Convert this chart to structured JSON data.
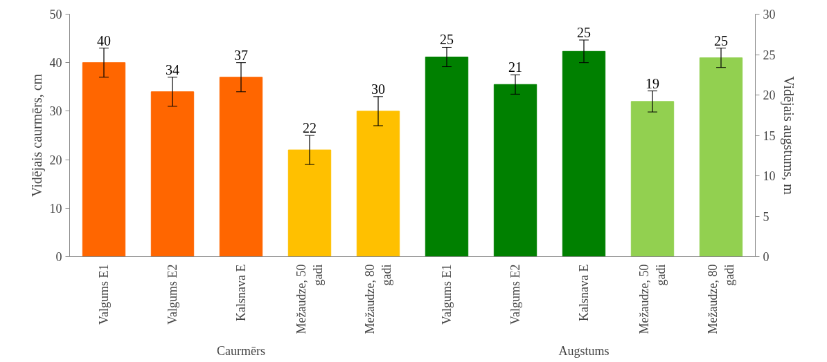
{
  "chart_data": {
    "type": "bar",
    "ylabel": "Vidējais caurmērs, cm",
    "y2label": "Vidējais augstums, m",
    "categories": [
      "Valgums E1",
      "Valgums E2",
      "Kalsnava E",
      "Mežaudze, 50 gadi",
      "Mežaudze, 80 gadi",
      "Valgums E1",
      "Valgums E2",
      "Kalsnava E",
      "Mežaudze, 50 gadi",
      "Mežaudze, 80 gadi"
    ],
    "series": [
      {
        "axis": "y",
        "colors": [
          "#ff6600",
          "#ff6600",
          "#ff6600",
          "#ffc000",
          "#ffc000",
          null,
          null,
          null,
          null,
          null
        ],
        "values": [
          40,
          34,
          37,
          22,
          30,
          null,
          null,
          null,
          null,
          null
        ],
        "errors": [
          3,
          3,
          3,
          3,
          3,
          null,
          null,
          null,
          null,
          null
        ],
        "value_labels": [
          "40",
          "34",
          "37",
          "22",
          "30",
          null,
          null,
          null,
          null,
          null
        ]
      },
      {
        "axis": "y2",
        "colors": [
          null,
          null,
          null,
          null,
          null,
          "#008000",
          "#008000",
          "#008000",
          "#92d050",
          "#92d050"
        ],
        "values": [
          null,
          null,
          null,
          null,
          null,
          24.7,
          21.3,
          25.4,
          19.2,
          24.6
        ],
        "errors": [
          null,
          null,
          null,
          null,
          null,
          1.2,
          1.2,
          1.4,
          1.3,
          1.2
        ],
        "value_labels": [
          null,
          null,
          null,
          null,
          null,
          "25",
          "21",
          "25",
          "19",
          "25"
        ]
      }
    ],
    "ylim": [
      0,
      50
    ],
    "yticks": [
      0,
      10,
      20,
      30,
      40,
      50
    ],
    "y2lim": [
      0,
      30
    ],
    "y2ticks": [
      0,
      5,
      10,
      15,
      20,
      25,
      30
    ],
    "grid": false,
    "annotations": [
      "Caurmērs",
      "Augstums"
    ]
  }
}
